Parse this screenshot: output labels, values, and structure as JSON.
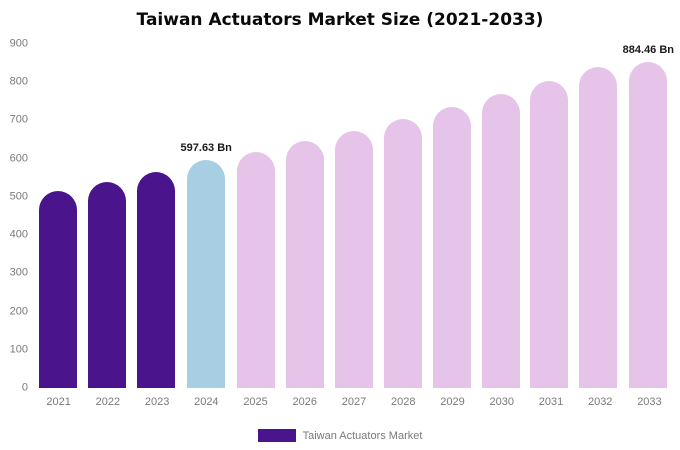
{
  "chart_data": {
    "type": "bar",
    "title": "Taiwan Actuators Market Size (2021-2033)",
    "xlabel": "",
    "ylabel": "",
    "ylim": [
      0,
      900
    ],
    "yticks": [
      0,
      100,
      200,
      300,
      400,
      500,
      600,
      700,
      800,
      900
    ],
    "grid": false,
    "categories": [
      "2021",
      "2022",
      "2023",
      "2024",
      "2025",
      "2026",
      "2027",
      "2028",
      "2029",
      "2030",
      "2031",
      "2032",
      "2033"
    ],
    "values": [
      515,
      540,
      565,
      597.63,
      617,
      645,
      673,
      703,
      735,
      768,
      803,
      840,
      884.46
    ],
    "roles": [
      "historical",
      "historical",
      "historical",
      "current",
      "forecast",
      "forecast",
      "forecast",
      "forecast",
      "forecast",
      "forecast",
      "forecast",
      "forecast",
      "forecast"
    ],
    "palette": {
      "historical": "#4a148c",
      "current": "#a8cee4",
      "forecast": "#e6c3e8"
    },
    "annotations": [
      {
        "category": "2024",
        "text": "597.63 Bn"
      },
      {
        "category": "2033",
        "text": "884.46 Bn"
      }
    ],
    "legend": {
      "position": "bottom",
      "items": [
        {
          "label": "Taiwan Actuators Market",
          "color": "#4a148c"
        }
      ]
    }
  }
}
